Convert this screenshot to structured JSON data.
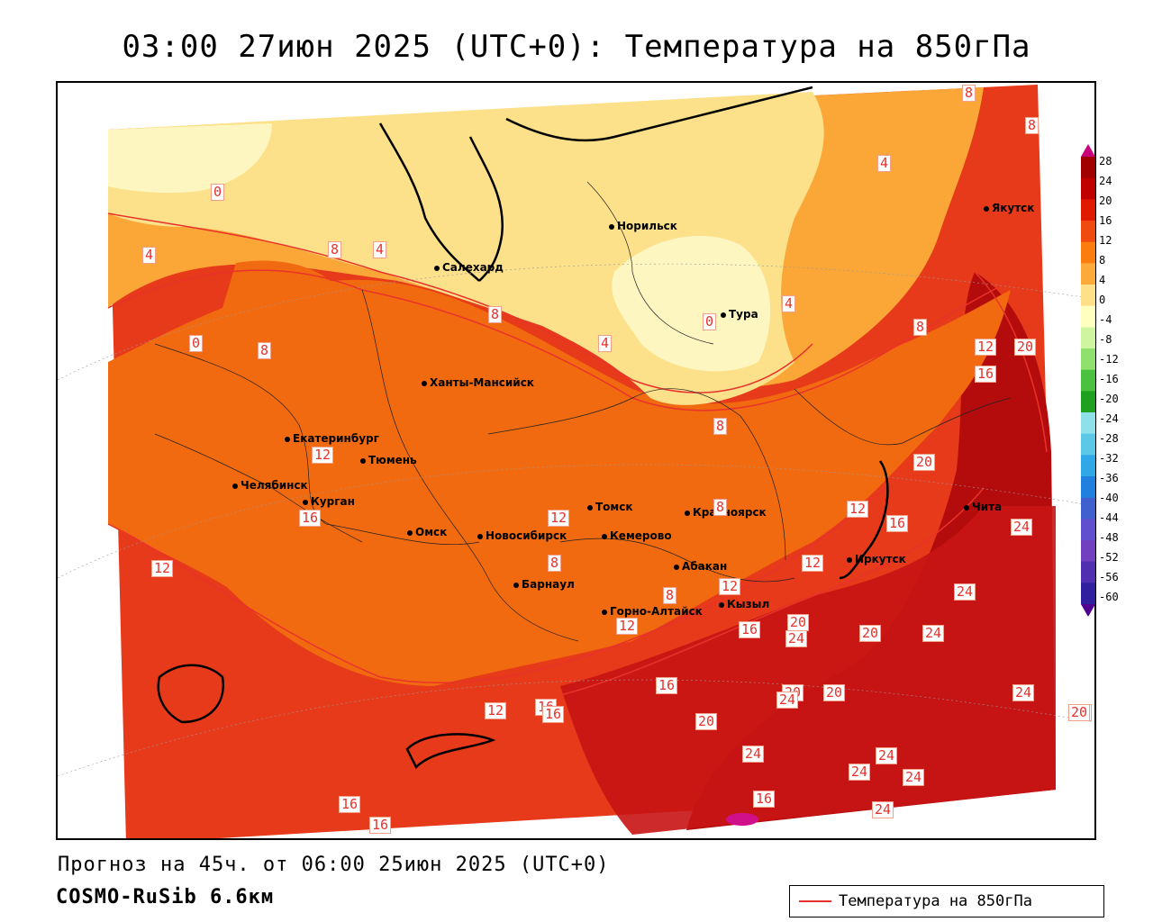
{
  "title": "03:00 27июн 2025 (UTC+0): Температура на 850гПа",
  "footer": {
    "forecast": "Прогноз на 45ч. от 06:00 25июн 2025 (UTC+0)",
    "model": "COSMO-RuSib 6.6км"
  },
  "legend": {
    "label": "Температура на 850гПа",
    "color": "#e8322b"
  },
  "colorbar": {
    "labels": [
      "28",
      "24",
      "20",
      "16",
      "12",
      "8",
      "4",
      "0",
      "-4",
      "-8",
      "-12",
      "-16",
      "-20",
      "-24",
      "-28",
      "-32",
      "-36",
      "-40",
      "-44",
      "-48",
      "-52",
      "-56",
      "-60"
    ],
    "colors": [
      "#c8007a",
      "#a00000",
      "#c00000",
      "#e01a00",
      "#f04a10",
      "#fb7d10",
      "#fdaa3a",
      "#fee08a",
      "#ffffc0",
      "#d0f5a0",
      "#90e070",
      "#4cc040",
      "#20a020",
      "#8fe0e8",
      "#5cc8e8",
      "#30a8e8",
      "#2080e0",
      "#4060d0",
      "#6050d0",
      "#7040c0",
      "#5030b0",
      "#3020a0",
      "#500090"
    ]
  },
  "cities": [
    {
      "name": "Норильск"
    },
    {
      "name": "Якутск"
    },
    {
      "name": "Салехард"
    },
    {
      "name": "Тура"
    },
    {
      "name": "Ханты-Мансийск"
    },
    {
      "name": "Екатеринбург"
    },
    {
      "name": "Тюмень"
    },
    {
      "name": "Челябинск"
    },
    {
      "name": "Курган"
    },
    {
      "name": "Омск"
    },
    {
      "name": "Томск"
    },
    {
      "name": "Красноярск"
    },
    {
      "name": "Новосибирск"
    },
    {
      "name": "Кемерово"
    },
    {
      "name": "Абакан"
    },
    {
      "name": "Барнаул"
    },
    {
      "name": "Горно-Алтайск"
    },
    {
      "name": "Кызыл"
    },
    {
      "name": "Иркутск"
    },
    {
      "name": "Чита"
    }
  ],
  "contour_labels": [
    "0",
    "4",
    "8",
    "4",
    "4",
    "8",
    "8",
    "0",
    "8",
    "0",
    "4",
    "8",
    "4",
    "8",
    "12",
    "20",
    "16",
    "8",
    "12",
    "20",
    "12",
    "12",
    "16",
    "16",
    "12",
    "8",
    "8",
    "8",
    "12",
    "12",
    "12",
    "16",
    "20",
    "24",
    "24",
    "20",
    "24",
    "20",
    "20",
    "24",
    "24",
    "16",
    "20",
    "24",
    "16",
    "12",
    "16",
    "20",
    "24",
    "24",
    "16",
    "16",
    "16",
    "24",
    "24",
    "24",
    "20"
  ]
}
